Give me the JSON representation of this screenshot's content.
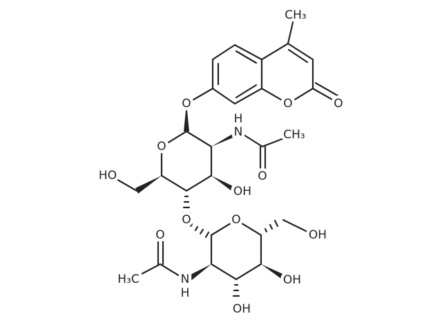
{
  "atoms": [
    "CH₃",
    "O",
    "O",
    "O",
    "N",
    "H",
    "O",
    "O",
    "CH₃",
    "OH",
    "HO",
    "O",
    "O",
    "OH",
    "OH",
    "OH",
    "N",
    "H",
    "O",
    "H₃C"
  ]
}
